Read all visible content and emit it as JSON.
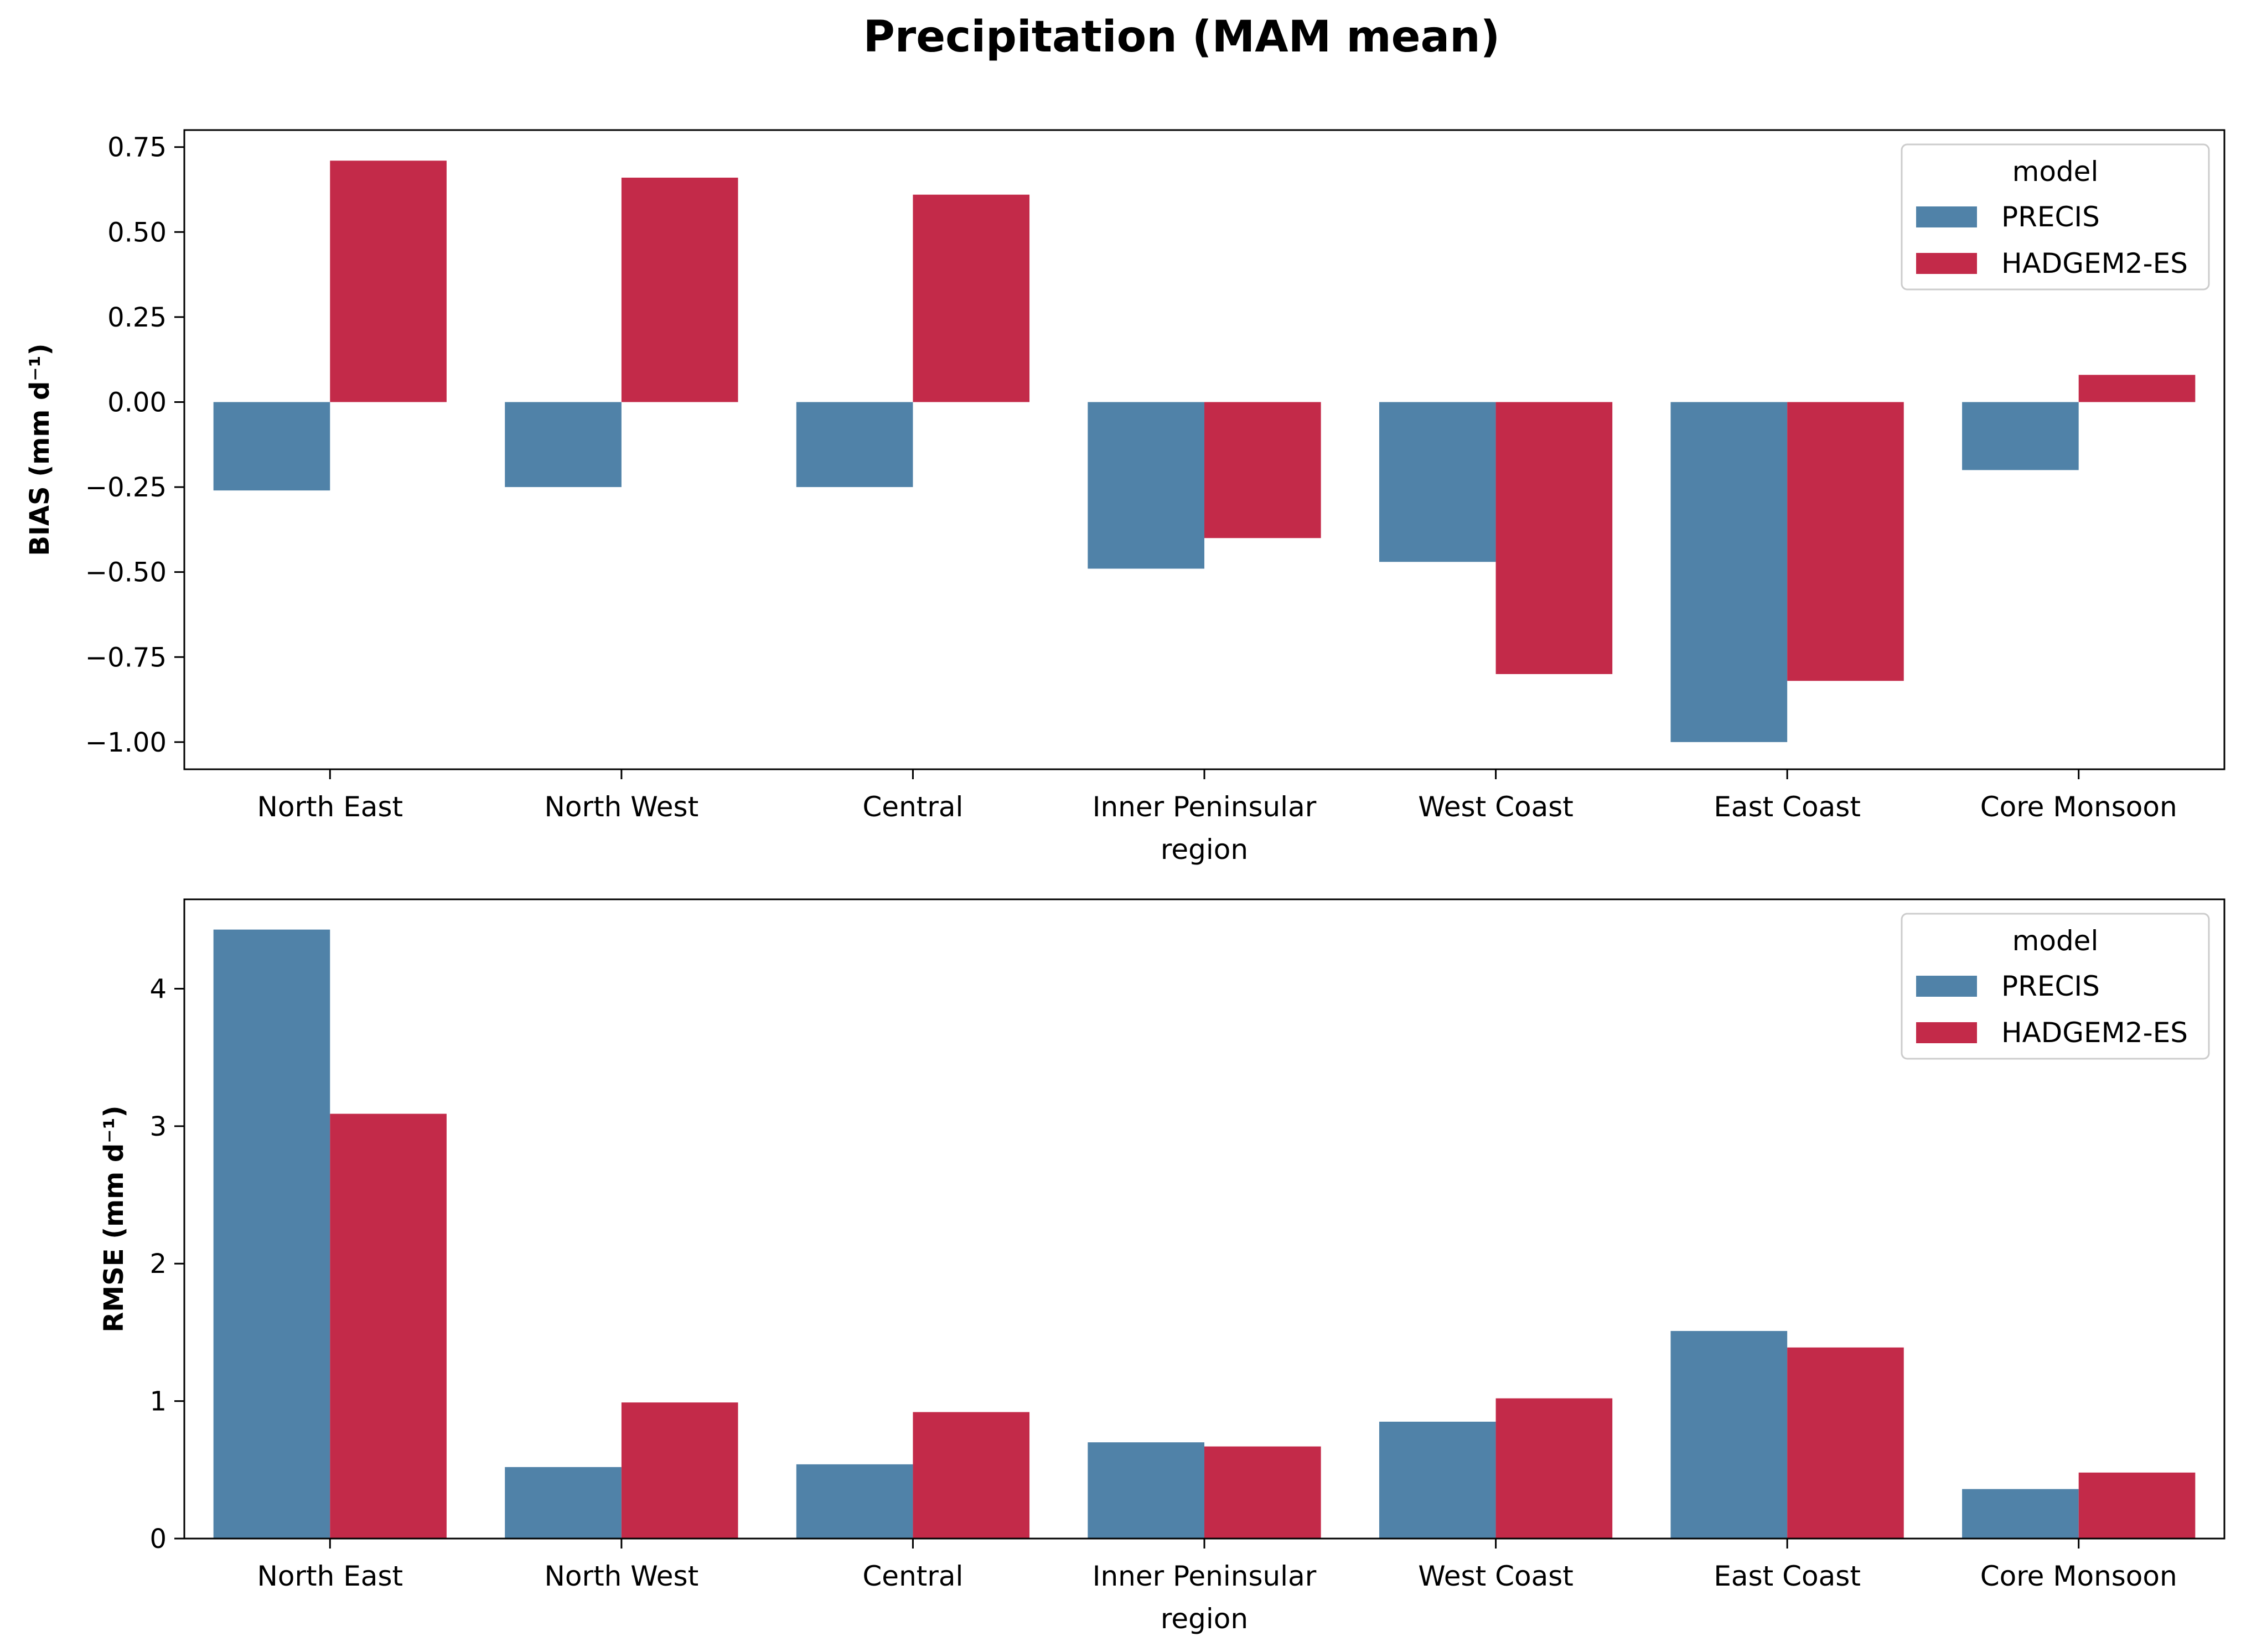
{
  "figure_title": "Precipitation (MAM mean)",
  "colors": {
    "PRECIS": "#5082a8",
    "HADGEM2-ES": "#c32a49"
  },
  "chart_data": [
    {
      "type": "bar",
      "title": "",
      "xlabel": "region",
      "ylabel": "BIAS (mm d⁻¹)",
      "ylim": [
        -1.08,
        0.8
      ],
      "yticks": [
        0.75,
        0.5,
        0.25,
        0.0,
        -0.25,
        -0.5,
        -0.75,
        -1.0
      ],
      "ytick_labels": [
        "0.75",
        "0.50",
        "0.25",
        "0.00",
        "−0.25",
        "−0.50",
        "−0.75",
        "−1.00"
      ],
      "categories": [
        "North East",
        "North West",
        "Central",
        "Inner Peninsular",
        "West Coast",
        "East Coast",
        "Core Monsoon"
      ],
      "series": [
        {
          "name": "PRECIS",
          "values": [
            -0.26,
            -0.25,
            -0.25,
            -0.49,
            -0.47,
            -1.0,
            -0.2
          ]
        },
        {
          "name": "HADGEM2-ES",
          "values": [
            0.71,
            0.66,
            0.61,
            -0.4,
            -0.8,
            -0.82,
            0.08
          ]
        }
      ],
      "legend": {
        "title": "model",
        "placement": "upper right",
        "entries": [
          "PRECIS",
          "HADGEM2-ES"
        ]
      },
      "grid": false
    },
    {
      "type": "bar",
      "title": "",
      "xlabel": "region",
      "ylabel": "RMSE (mm d⁻¹)",
      "ylim": [
        0,
        4.65
      ],
      "yticks": [
        0,
        1,
        2,
        3,
        4
      ],
      "ytick_labels": [
        "0",
        "1",
        "2",
        "3",
        "4"
      ],
      "categories": [
        "North East",
        "North West",
        "Central",
        "Inner Peninsular",
        "West Coast",
        "East Coast",
        "Core Monsoon"
      ],
      "series": [
        {
          "name": "PRECIS",
          "values": [
            4.43,
            0.52,
            0.54,
            0.7,
            0.85,
            1.51,
            0.36
          ]
        },
        {
          "name": "HADGEM2-ES",
          "values": [
            3.09,
            0.99,
            0.92,
            0.67,
            1.02,
            1.39,
            0.48
          ]
        }
      ],
      "legend": {
        "title": "model",
        "placement": "upper right",
        "entries": [
          "PRECIS",
          "HADGEM2-ES"
        ]
      },
      "grid": false
    }
  ]
}
